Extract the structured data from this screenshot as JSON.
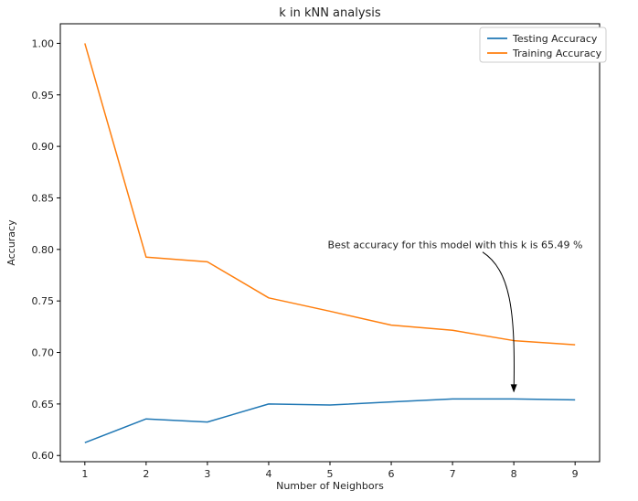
{
  "chart_data": {
    "type": "line",
    "title": "k in kNN analysis",
    "xlabel": "Number of Neighbors",
    "ylabel": "Accuracy",
    "x": [
      1,
      2,
      3,
      4,
      5,
      6,
      7,
      8,
      9
    ],
    "xticks": [
      "1",
      "2",
      "3",
      "4",
      "5",
      "6",
      "7",
      "8",
      "9"
    ],
    "yticks": [
      "0.60",
      "0.65",
      "0.70",
      "0.75",
      "0.80",
      "0.85",
      "0.90",
      "0.95",
      "1.00"
    ],
    "xlim": [
      0.6,
      9.4
    ],
    "ylim": [
      0.594,
      1.019
    ],
    "series": [
      {
        "name": "Testing Accuracy",
        "color": "#1f77b4",
        "values": [
          0.6125,
          0.6355,
          0.6325,
          0.65,
          0.649,
          0.652,
          0.6549,
          0.6549,
          0.654
        ]
      },
      {
        "name": "Training Accuracy",
        "color": "#ff7f0e",
        "values": [
          1.0,
          0.7925,
          0.788,
          0.753,
          0.74,
          0.7265,
          0.7215,
          0.7115,
          0.7075
        ]
      }
    ],
    "legend": {
      "position": "top-right"
    },
    "grid": false,
    "annotation": {
      "text": "Best accuracy for this model with this k is 65.49 %",
      "target": {
        "x": 8,
        "y": 0.6549
      },
      "anchor": {
        "x": 5,
        "y": 0.801
      }
    }
  }
}
